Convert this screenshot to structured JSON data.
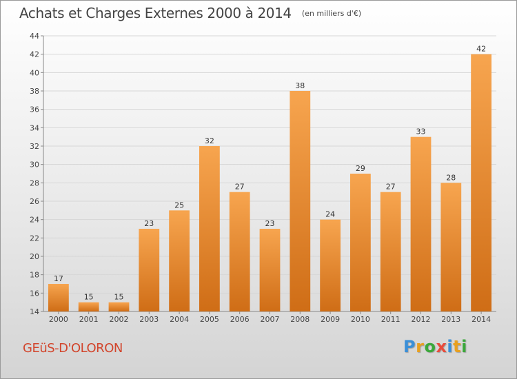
{
  "header": {
    "title": "Achats et Charges Externes 2000 à 2014",
    "unit_note": "(en milliers d'€)"
  },
  "place_name": "GEüS-D'OLORON",
  "brand": {
    "letters": [
      "P",
      "r",
      "o",
      "x",
      "i",
      "t",
      "i"
    ],
    "colors": [
      "#3a8fd8",
      "#e8a020",
      "#3aa83a",
      "#e84c3c",
      "#3a8fd8",
      "#e8a020",
      "#3aa83a"
    ]
  },
  "chart_data": {
    "type": "bar",
    "title": "Achats et Charges Externes 2000 à 2014",
    "categories": [
      "2000",
      "2001",
      "2002",
      "2003",
      "2004",
      "2005",
      "2006",
      "2007",
      "2008",
      "2009",
      "2010",
      "2011",
      "2012",
      "2013",
      "2014"
    ],
    "values": [
      17,
      15,
      15,
      23,
      25,
      32,
      27,
      23,
      38,
      24,
      29,
      27,
      33,
      28,
      42
    ],
    "xlabel": "",
    "ylabel": "",
    "ylim": [
      14,
      44
    ],
    "yticks": [
      14,
      16,
      18,
      20,
      22,
      24,
      26,
      28,
      30,
      32,
      34,
      36,
      38,
      40,
      42,
      44
    ],
    "grid": true,
    "bar_color_top": "#f7a54f",
    "bar_color_bottom": "#cf6d16"
  }
}
